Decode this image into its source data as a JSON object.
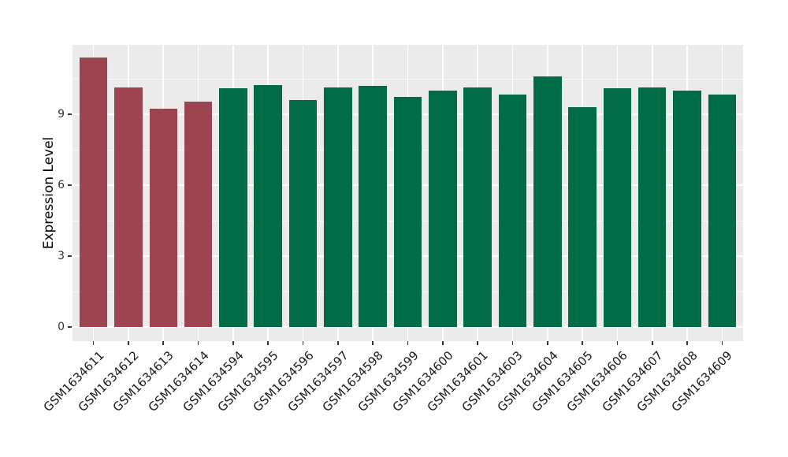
{
  "figure": {
    "background": "#FFFFFF"
  },
  "chart_data": {
    "type": "bar",
    "title": "",
    "xlabel": "",
    "ylabel": "Expression Level",
    "ylim": [
      0,
      11.9
    ],
    "yticks": [
      0,
      3,
      6,
      9
    ],
    "yticks_minor": [
      1.5,
      4.5,
      7.5,
      10.5
    ],
    "grid": "white major and minor horizontal lines plus vertical lines at each bar center, on gray panel",
    "legend": "none",
    "panel_bg": "#EBEBEB",
    "grid_color": "#FFFFFF",
    "tick_color": "#333333",
    "bar_group_colors": {
      "highlighted": "#9D4452",
      "default": "#016A47"
    },
    "bars": [
      {
        "label": "GSM1634611",
        "value": 11.4,
        "group": "highlighted"
      },
      {
        "label": "GSM1634612",
        "value": 10.15,
        "group": "highlighted"
      },
      {
        "label": "GSM1634613",
        "value": 9.25,
        "group": "highlighted"
      },
      {
        "label": "GSM1634614",
        "value": 9.55,
        "group": "highlighted"
      },
      {
        "label": "GSM1634594",
        "value": 10.1,
        "group": "default"
      },
      {
        "label": "GSM1634595",
        "value": 10.25,
        "group": "default"
      },
      {
        "label": "GSM1634596",
        "value": 9.6,
        "group": "default"
      },
      {
        "label": "GSM1634597",
        "value": 10.15,
        "group": "default"
      },
      {
        "label": "GSM1634598",
        "value": 10.2,
        "group": "default"
      },
      {
        "label": "GSM1634599",
        "value": 9.75,
        "group": "default"
      },
      {
        "label": "GSM1634600",
        "value": 10.0,
        "group": "default"
      },
      {
        "label": "GSM1634601",
        "value": 10.15,
        "group": "default"
      },
      {
        "label": "GSM1634603",
        "value": 9.85,
        "group": "default"
      },
      {
        "label": "GSM1634604",
        "value": 10.6,
        "group": "default"
      },
      {
        "label": "GSM1634605",
        "value": 9.3,
        "group": "default"
      },
      {
        "label": "GSM1634606",
        "value": 10.1,
        "group": "default"
      },
      {
        "label": "GSM1634607",
        "value": 10.15,
        "group": "default"
      },
      {
        "label": "GSM1634608",
        "value": 10.0,
        "group": "default"
      },
      {
        "label": "GSM1634609",
        "value": 9.85,
        "group": "default"
      }
    ]
  }
}
